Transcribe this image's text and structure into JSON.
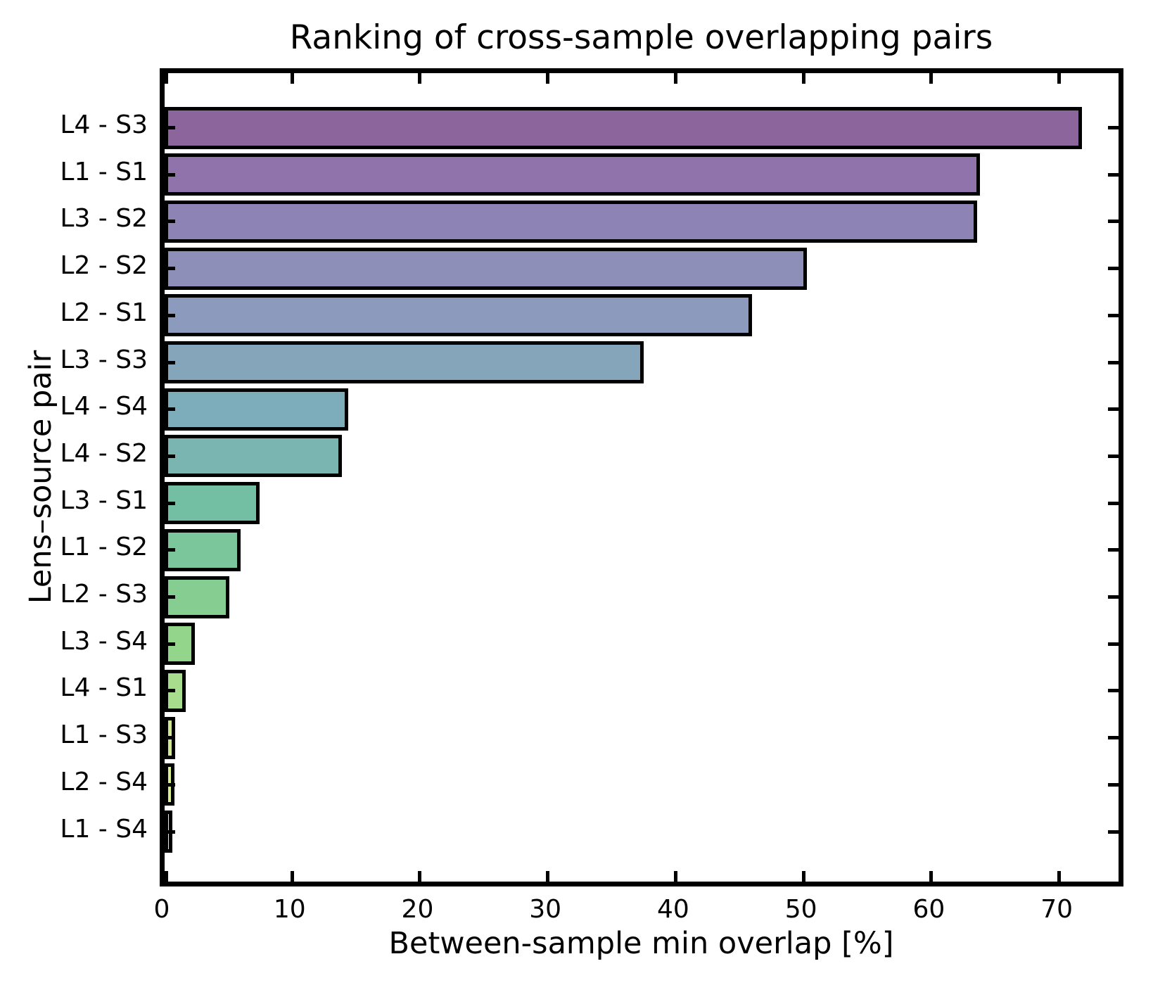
{
  "figure": {
    "background": "#ffffff",
    "text_color": "#000000",
    "axis_color": "#000000"
  },
  "chart_data": {
    "type": "bar",
    "orientation": "horizontal",
    "title": "Ranking of cross-sample overlapping pairs",
    "xlabel": "Between-sample min overlap [%]",
    "ylabel": "Lens–source pair",
    "categories": [
      "L4 - S3",
      "L1 - S1",
      "L3 - S2",
      "L2 - S2",
      "L2 - S1",
      "L3 - S3",
      "L4 - S4",
      "L4 - S2",
      "L3 - S1",
      "L1 - S2",
      "L2 - S3",
      "L3 - S4",
      "L4 - S1",
      "L1 - S3",
      "L2 - S4",
      "L1 - S4"
    ],
    "values": [
      71.5,
      63.5,
      63.3,
      50.0,
      45.7,
      37.2,
      14.1,
      13.6,
      7.2,
      5.7,
      4.8,
      2.1,
      1.4,
      0.6,
      0.5,
      0.2
    ],
    "bar_colors": [
      "#8c659c",
      "#9073ab",
      "#8d83b5",
      "#8e8fb9",
      "#8b9abd",
      "#85a6ba",
      "#7dadba",
      "#7bb5b2",
      "#73bfa4",
      "#7cc69c",
      "#86cd92",
      "#92d58b",
      "#a8dd8e",
      "#d0e98f",
      "#dcee92",
      "#eef4a3"
    ],
    "bar_edge_color": "#000000",
    "xlim": [
      0,
      75
    ],
    "xticks": [
      0,
      10,
      20,
      30,
      40,
      50,
      60,
      70
    ],
    "grid": false,
    "legend": null,
    "tick_direction": "in"
  }
}
